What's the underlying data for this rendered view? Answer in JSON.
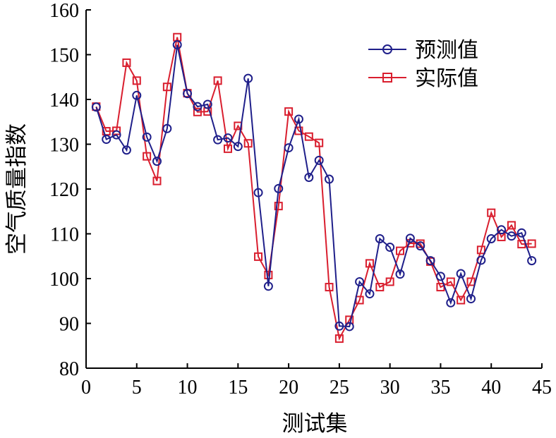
{
  "chart_data": {
    "type": "line",
    "xlabel": "测试集",
    "ylabel": "空气质量指数",
    "xlim": [
      0,
      45
    ],
    "ylim": [
      80,
      160
    ],
    "xticks": [
      "0",
      "5",
      "10",
      "15",
      "20",
      "25",
      "30",
      "35",
      "40",
      "45"
    ],
    "yticks": [
      "80",
      "90",
      "100",
      "110",
      "120",
      "130",
      "140",
      "150",
      "160"
    ],
    "grid": false,
    "legend_position": "top-right",
    "x": [
      1,
      2,
      3,
      4,
      5,
      6,
      7,
      8,
      9,
      10,
      11,
      12,
      13,
      14,
      15,
      16,
      17,
      18,
      19,
      20,
      21,
      22,
      23,
      24,
      25,
      26,
      27,
      28,
      29,
      30,
      31,
      32,
      33,
      34,
      35,
      36,
      37,
      38,
      39,
      40,
      41,
      42,
      43,
      44
    ],
    "series": [
      {
        "name": "预测值",
        "color": "#1f1f8a",
        "marker": "circle",
        "values": [
          138.3,
          131.1,
          132.1,
          128.7,
          140.9,
          131.6,
          126.2,
          133.5,
          152.2,
          141.3,
          138.4,
          138.9,
          131.0,
          131.4,
          129.5,
          144.7,
          119.2,
          98.3,
          120.1,
          129.2,
          135.6,
          122.6,
          126.4,
          122.2,
          89.4,
          89.3,
          99.3,
          96.6,
          108.9,
          107.0,
          101.0,
          109.0,
          107.3,
          104.0,
          100.5,
          94.6,
          101.1,
          95.5,
          104.1,
          108.9,
          110.9,
          109.5,
          110.2,
          104.0
        ]
      },
      {
        "name": "实际值",
        "color": "#d91e2e",
        "marker": "square",
        "values": [
          138.4,
          132.9,
          133.0,
          148.2,
          144.2,
          127.3,
          121.8,
          142.8,
          153.9,
          141.4,
          137.2,
          137.3,
          144.2,
          129.0,
          134.1,
          130.2,
          104.9,
          100.8,
          116.2,
          137.3,
          133.0,
          131.7,
          130.3,
          98.1,
          86.6,
          90.8,
          95.2,
          103.4,
          98.1,
          99.3,
          106.2,
          107.9,
          107.8,
          103.8,
          98.1,
          99.3,
          95.2,
          99.3,
          106.4,
          114.7,
          109.3,
          111.9,
          107.7,
          107.8
        ]
      }
    ]
  }
}
